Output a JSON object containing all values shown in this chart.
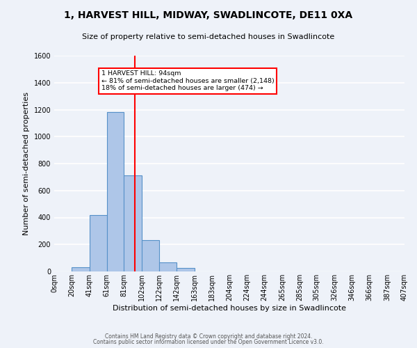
{
  "title": "1, HARVEST HILL, MIDWAY, SWADLINCOTE, DE11 0XA",
  "subtitle": "Size of property relative to semi-detached houses in Swadlincote",
  "bar_heights": [
    0,
    30,
    420,
    1180,
    710,
    230,
    65,
    25,
    0,
    0,
    0,
    0,
    0,
    0,
    0,
    0,
    0,
    0,
    0,
    0
  ],
  "bin_edges": [
    0,
    20,
    41,
    61,
    81,
    102,
    122,
    142,
    163,
    183,
    204,
    224,
    244,
    265,
    285,
    305,
    326,
    346,
    366,
    387,
    407
  ],
  "bar_color": "#aec6e8",
  "bar_edgecolor": "#5590c8",
  "vline_color": "red",
  "vline_x": 94,
  "annotation_text": "1 HARVEST HILL: 94sqm\n← 81% of semi-detached houses are smaller (2,148)\n18% of semi-detached houses are larger (474) →",
  "annotation_box_color": "white",
  "annotation_box_edgecolor": "red",
  "xlabel": "Distribution of semi-detached houses by size in Swadlincote",
  "ylabel": "Number of semi-detached properties",
  "ylim": [
    0,
    1600
  ],
  "yticks": [
    0,
    200,
    400,
    600,
    800,
    1000,
    1200,
    1400,
    1600
  ],
  "xticklabels": [
    "0sqm",
    "20sqm",
    "41sqm",
    "61sqm",
    "81sqm",
    "102sqm",
    "122sqm",
    "142sqm",
    "163sqm",
    "183sqm",
    "204sqm",
    "224sqm",
    "244sqm",
    "265sqm",
    "285sqm",
    "305sqm",
    "326sqm",
    "346sqm",
    "366sqm",
    "387sqm",
    "407sqm"
  ],
  "footer_line1": "Contains HM Land Registry data © Crown copyright and database right 2024.",
  "footer_line2": "Contains public sector information licensed under the Open Government Licence v3.0.",
  "bg_color": "#eef2f9",
  "grid_color": "white",
  "title_fontsize": 10,
  "subtitle_fontsize": 8,
  "xlabel_fontsize": 8,
  "ylabel_fontsize": 8,
  "tick_fontsize": 7,
  "footer_fontsize": 5.5
}
